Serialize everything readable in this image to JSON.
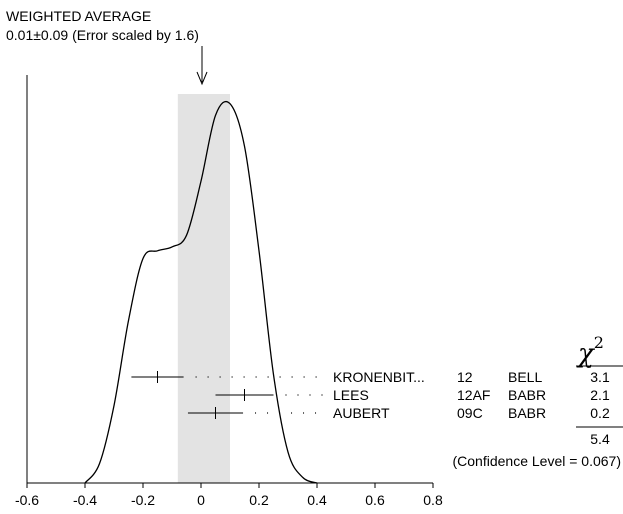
{
  "chart_data": {
    "type": "scatter",
    "title": "WEIGHTED AVERAGE",
    "subtitle": "0.01±0.09 (Error scaled by 1.6)",
    "weighted_average": {
      "value": 0.01,
      "error": 0.09
    },
    "xlim": [
      -0.6,
      0.8
    ],
    "x_ticks": [
      "-0.6",
      "-0.4",
      "-0.2",
      "0",
      "0.2",
      "0.4",
      "0.6",
      "0.8"
    ],
    "x_tick_values": [
      -0.6,
      -0.4,
      -0.2,
      0,
      0.2,
      0.4,
      0.6,
      0.8
    ],
    "chi2_header": "χ",
    "chi2_sup": "2",
    "measurements": [
      {
        "author": "KRONENBIT...",
        "year": "12",
        "experiment": "BELL",
        "chi2": "3.1",
        "value": -0.15,
        "error": 0.09
      },
      {
        "author": "LEES",
        "year": "12AF",
        "experiment": "BABR",
        "chi2": "2.1",
        "value": 0.15,
        "error": 0.1
      },
      {
        "author": "AUBERT",
        "year": "09C",
        "experiment": "BABR",
        "chi2": "0.2",
        "value": 0.05,
        "error": 0.095
      }
    ],
    "chi2_total": "5.4",
    "confidence_level": "(Confidence Level = 0.067)",
    "ideogram": {
      "x": [
        -0.4,
        -0.35,
        -0.3,
        -0.25,
        -0.2,
        -0.15,
        -0.1,
        -0.05,
        0,
        0.05,
        0.1,
        0.15,
        0.2,
        0.25,
        0.3,
        0.35,
        0.4
      ],
      "y": [
        0.0,
        0.05,
        0.2,
        0.42,
        0.58,
        0.6,
        0.61,
        0.64,
        0.78,
        0.95,
        0.98,
        0.87,
        0.6,
        0.28,
        0.08,
        0.015,
        0.0
      ]
    }
  }
}
